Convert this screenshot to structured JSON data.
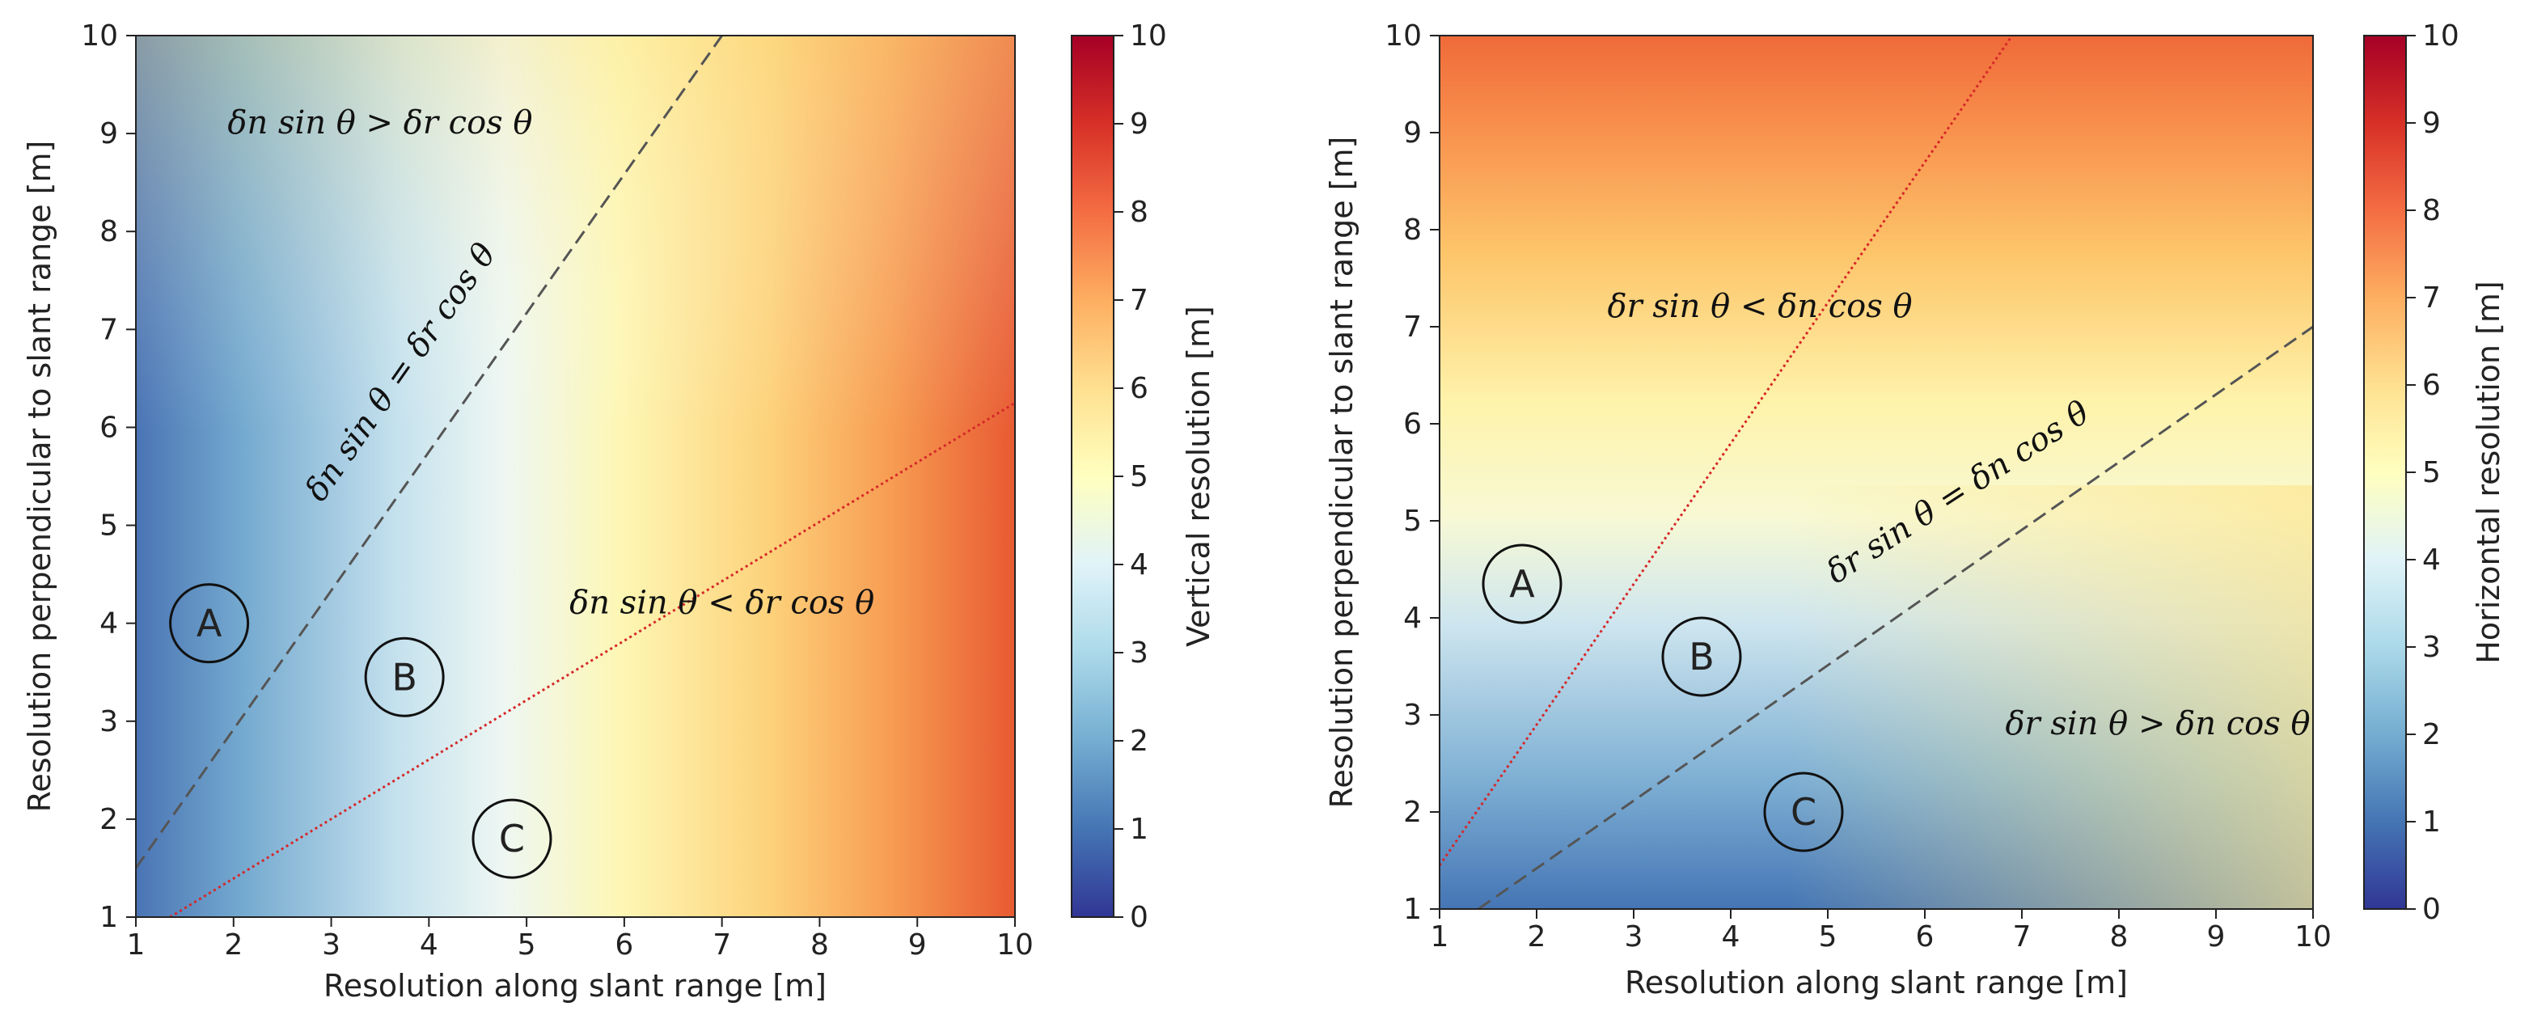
{
  "chart_data": [
    {
      "type": "heatmap",
      "xlabel": "Resolution along slant range [m]",
      "ylabel": "Resolution perpendicular to slant range [m]",
      "xlim": [
        1,
        10
      ],
      "ylim": [
        1,
        10
      ],
      "x_ticks": [
        "1",
        "2",
        "3",
        "4",
        "5",
        "6",
        "7",
        "8",
        "9",
        "10"
      ],
      "y_ticks": [
        "1",
        "2",
        "3",
        "4",
        "5",
        "6",
        "7",
        "8",
        "9",
        "10"
      ],
      "colorbar": {
        "label": "Vertical resolution [m]",
        "range": [
          0,
          10
        ],
        "ticks": [
          "0",
          "1",
          "2",
          "3",
          "4",
          "5",
          "6",
          "7",
          "8",
          "9",
          "10"
        ],
        "colormap": "RdYlBu_r"
      },
      "field": "gradient mainly along slant-range resolution",
      "lines": [
        {
          "name": "boundary-dashed",
          "style": "dashed",
          "color": "#555555",
          "points": [
            [
              1,
              1.5
            ],
            [
              7,
              10
            ]
          ]
        },
        {
          "name": "boundary-red-dotted",
          "style": "dotted",
          "color": "#d62728",
          "points": [
            [
              1.35,
              1
            ],
            [
              10,
              6.25
            ]
          ]
        }
      ],
      "annotations": [
        {
          "text": "δn sin θ > δr cos θ",
          "x": 3.5,
          "y": 9.0
        },
        {
          "text": "δn sin θ = δr cos θ",
          "x": 3.8,
          "y": 6.5,
          "rotation": -55
        },
        {
          "text": "δn sin θ < δr cos θ",
          "x": 7.0,
          "y": 4.1
        }
      ],
      "regions": [
        {
          "label": "A",
          "x": 1.75,
          "y": 4.0
        },
        {
          "label": "B",
          "x": 3.75,
          "y": 3.45
        },
        {
          "label": "C",
          "x": 4.85,
          "y": 1.8
        }
      ]
    },
    {
      "type": "heatmap",
      "xlabel": "Resolution along slant range [m]",
      "ylabel": "Resolution perpendicular to slant range [m]",
      "xlim": [
        1,
        10
      ],
      "ylim": [
        1,
        10
      ],
      "x_ticks": [
        "1",
        "2",
        "3",
        "4",
        "5",
        "6",
        "7",
        "8",
        "9",
        "10"
      ],
      "y_ticks": [
        "1",
        "2",
        "3",
        "4",
        "5",
        "6",
        "7",
        "8",
        "9",
        "10"
      ],
      "colorbar": {
        "label": "Horizontal resolution [m]",
        "range": [
          0,
          10
        ],
        "ticks": [
          "0",
          "1",
          "2",
          "3",
          "4",
          "5",
          "6",
          "7",
          "8",
          "9",
          "10"
        ],
        "colormap": "RdYlBu_r"
      },
      "field": "gradient mainly along perpendicular resolution",
      "lines": [
        {
          "name": "boundary-red-dotted",
          "style": "dotted",
          "color": "#d62728",
          "points": [
            [
              1,
              1.45
            ],
            [
              6.9,
              10
            ]
          ]
        },
        {
          "name": "boundary-dashed",
          "style": "dashed",
          "color": "#555555",
          "points": [
            [
              1.4,
              1
            ],
            [
              10,
              7.0
            ]
          ]
        }
      ],
      "annotations": [
        {
          "text": "δr sin θ < δn cos θ",
          "x": 4.3,
          "y": 7.1
        },
        {
          "text": "δr sin θ = δn cos θ",
          "x": 6.4,
          "y": 5.2,
          "rotation": -33
        },
        {
          "text": "δr sin θ > δn cos θ",
          "x": 8.4,
          "y": 2.8
        }
      ],
      "regions": [
        {
          "label": "A",
          "x": 1.85,
          "y": 4.35
        },
        {
          "label": "B",
          "x": 3.7,
          "y": 3.6
        },
        {
          "label": "C",
          "x": 4.75,
          "y": 2.0
        }
      ]
    }
  ]
}
